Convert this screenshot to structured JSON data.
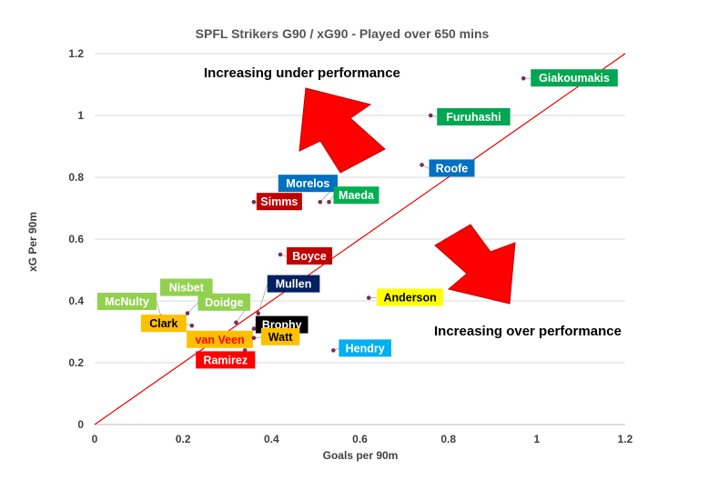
{
  "chart_data": {
    "type": "scatter",
    "title": "SPFL Strikers G90 / xG90 - Played over 650 mins",
    "xlabel": "Goals per 90m",
    "ylabel": "xG Per 90m",
    "xlim": [
      0,
      1.2
    ],
    "ylim": [
      0,
      1.2
    ],
    "xticks": [
      "0",
      "0.2",
      "0.4",
      "0.6",
      "0.8",
      "1",
      "1.2"
    ],
    "yticks": [
      "0",
      "0.2",
      "0.4",
      "0.6",
      "0.8",
      "1",
      "1.2"
    ],
    "grid": "horizontal",
    "reference_line": {
      "from": [
        0,
        0
      ],
      "to": [
        1.2,
        1.2
      ],
      "color": "#e60000"
    },
    "annotations": [
      {
        "text": "Increasing under performance",
        "arrow": "up-left"
      },
      {
        "text": "Increasing over performance",
        "arrow": "down-right"
      }
    ],
    "points": [
      {
        "name": "Giakoumakis",
        "x": 0.97,
        "y": 1.12,
        "label_bg": "#00a651",
        "label_fg": "#ffffff"
      },
      {
        "name": "Furuhashi",
        "x": 0.76,
        "y": 1.0,
        "label_bg": "#00a651",
        "label_fg": "#ffffff"
      },
      {
        "name": "Roofe",
        "x": 0.74,
        "y": 0.84,
        "label_bg": "#0070c0",
        "label_fg": "#ffffff"
      },
      {
        "name": "Morelos",
        "x": 0.51,
        "y": 0.72,
        "label_bg": "#0070c0",
        "label_fg": "#ffffff"
      },
      {
        "name": "Maeda",
        "x": 0.53,
        "y": 0.72,
        "label_bg": "#00b050",
        "label_fg": "#ffffff"
      },
      {
        "name": "Simms",
        "x": 0.36,
        "y": 0.72,
        "label_bg": "#c00000",
        "label_fg": "#ffffff"
      },
      {
        "name": "Boyce",
        "x": 0.42,
        "y": 0.55,
        "label_bg": "#c00000",
        "label_fg": "#ffffff"
      },
      {
        "name": "Anderson",
        "x": 0.62,
        "y": 0.41,
        "label_bg": "#ffff00",
        "label_fg": "#000000"
      },
      {
        "name": "Nisbet",
        "x": 0.21,
        "y": 0.36,
        "label_bg": "#92d050",
        "label_fg": "#ffffff"
      },
      {
        "name": "McNulty",
        "x": 0.15,
        "y": 0.35,
        "label_bg": "#92d050",
        "label_fg": "#ffffff"
      },
      {
        "name": "Clark",
        "x": 0.22,
        "y": 0.32,
        "label_bg": "#ffc000",
        "label_fg": "#000000"
      },
      {
        "name": "Doidge",
        "x": 0.32,
        "y": 0.33,
        "label_bg": "#92d050",
        "label_fg": "#ffffff"
      },
      {
        "name": "Mullen",
        "x": 0.37,
        "y": 0.36,
        "label_bg": "#002060",
        "label_fg": "#ffffff"
      },
      {
        "name": "Brophy",
        "x": 0.36,
        "y": 0.31,
        "label_bg": "#000000",
        "label_fg": "#ffffff"
      },
      {
        "name": "van Veen",
        "x": 0.34,
        "y": 0.28,
        "label_bg": "#ffc000",
        "label_fg": "#ff0000"
      },
      {
        "name": "Watt",
        "x": 0.36,
        "y": 0.28,
        "label_bg": "#ffc000",
        "label_fg": "#000000"
      },
      {
        "name": "Ramirez",
        "x": 0.34,
        "y": 0.24,
        "label_bg": "#ff0000",
        "label_fg": "#ffffff"
      },
      {
        "name": "Hendry",
        "x": 0.54,
        "y": 0.24,
        "label_bg": "#00b0f0",
        "label_fg": "#ffffff"
      }
    ]
  }
}
